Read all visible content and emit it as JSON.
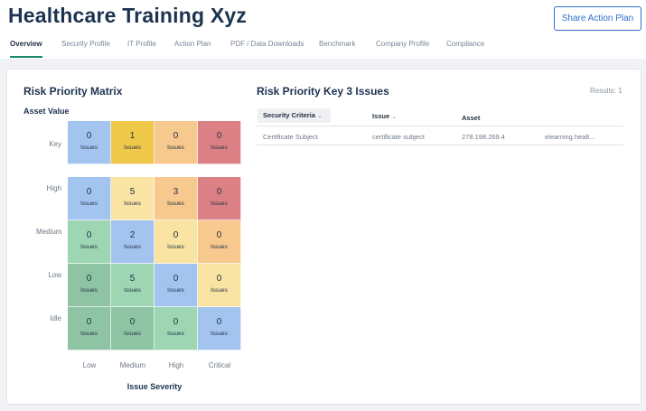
{
  "header": {
    "title": "Healthcare Training Xyz",
    "share_label": "Share Action Plan"
  },
  "tabs": [
    {
      "label": "Overview",
      "active": true
    },
    {
      "label": "Security Profile"
    },
    {
      "label": "IT Profile"
    },
    {
      "label": "Action Plan"
    },
    {
      "label": "PDF / Data Downloads"
    },
    {
      "label": "Benchmark"
    },
    {
      "label": "Company Profile"
    },
    {
      "label": "Compliance"
    }
  ],
  "matrix": {
    "title": "Risk Priority Matrix",
    "y_axis_title": "Asset Value",
    "x_axis_title": "Issue Severity",
    "rows": [
      "Key",
      "High",
      "Medium",
      "Low",
      "Idle"
    ],
    "columns": [
      "Low",
      "Medium",
      "High",
      "Critical"
    ],
    "issues_label": "Issues",
    "cells": [
      [
        {
          "count": "0",
          "color": "#a4c4f0"
        },
        {
          "count": "1",
          "color": "#f0c84a"
        },
        {
          "count": "0",
          "color": "#f7c98e"
        },
        {
          "count": "0",
          "color": "#db8185"
        }
      ],
      [
        {
          "count": "0",
          "color": "#a4c4f0"
        },
        {
          "count": "5",
          "color": "#fae4a3"
        },
        {
          "count": "3",
          "color": "#f7c98e"
        },
        {
          "count": "0",
          "color": "#db8185"
        }
      ],
      [
        {
          "count": "0",
          "color": "#9ed6b4"
        },
        {
          "count": "2",
          "color": "#a4c4f0"
        },
        {
          "count": "0",
          "color": "#fae4a3"
        },
        {
          "count": "0",
          "color": "#f7c98e"
        }
      ],
      [
        {
          "count": "0",
          "color": "#8ec4a3"
        },
        {
          "count": "5",
          "color": "#9ed6b4"
        },
        {
          "count": "0",
          "color": "#a4c4f0"
        },
        {
          "count": "0",
          "color": "#fae4a3"
        }
      ],
      [
        {
          "count": "0",
          "color": "#8ec4a3"
        },
        {
          "count": "0",
          "color": "#8ec4a3"
        },
        {
          "count": "0",
          "color": "#9ed6b4"
        },
        {
          "count": "0",
          "color": "#a4c4f0"
        }
      ]
    ]
  },
  "key": {
    "title": "Risk Priority Key 3 Issues",
    "results": "Results: 1",
    "columns": {
      "criteria": "Security Criteria",
      "issue": "Issue",
      "asset": "Asset"
    },
    "rows": [
      {
        "criteria": "Certificate Subject",
        "issue": "certificate subject",
        "asset": "278.198.269.4",
        "host": "elearning.healt..."
      }
    ]
  }
}
